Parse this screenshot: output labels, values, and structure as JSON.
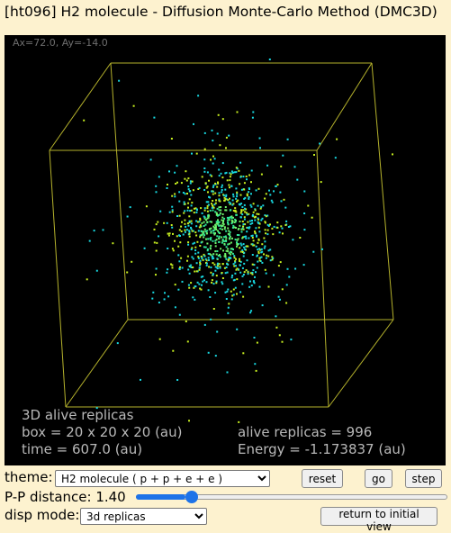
{
  "window": {
    "title": "[ht096] H2 molecule - Diffusion Monte-Carlo Method (DMC3D)"
  },
  "viewport": {
    "angle_readout": "Ax=72.0, Ay=-14.0",
    "background": "#000000",
    "box_color": "#b5b22c",
    "particle_colors": [
      "#18d8e0",
      "#6ef26a",
      "#c8f020",
      "#30e89a"
    ],
    "info": {
      "heading": "3D alive replicas",
      "box": "box = 20 x 20 x 20 (au)",
      "time": "time = 607.0 (au)",
      "alive": "alive replicas = 996",
      "energy": "Energy = -1.173837 (au)"
    }
  },
  "controls": {
    "theme_label": "theme:",
    "theme_value": "H2 molecule ( p + p + e + e )",
    "reset_label": "reset",
    "go_label": "go",
    "step_label": "step",
    "pp_label": "P-P distance: 1.40",
    "pp_slider": {
      "value": 1.4,
      "fraction": 0.16,
      "accent": "#1e73e8"
    },
    "disp_label": "disp mode:",
    "disp_value": "3d replicas",
    "return_label": "return to initial view"
  }
}
